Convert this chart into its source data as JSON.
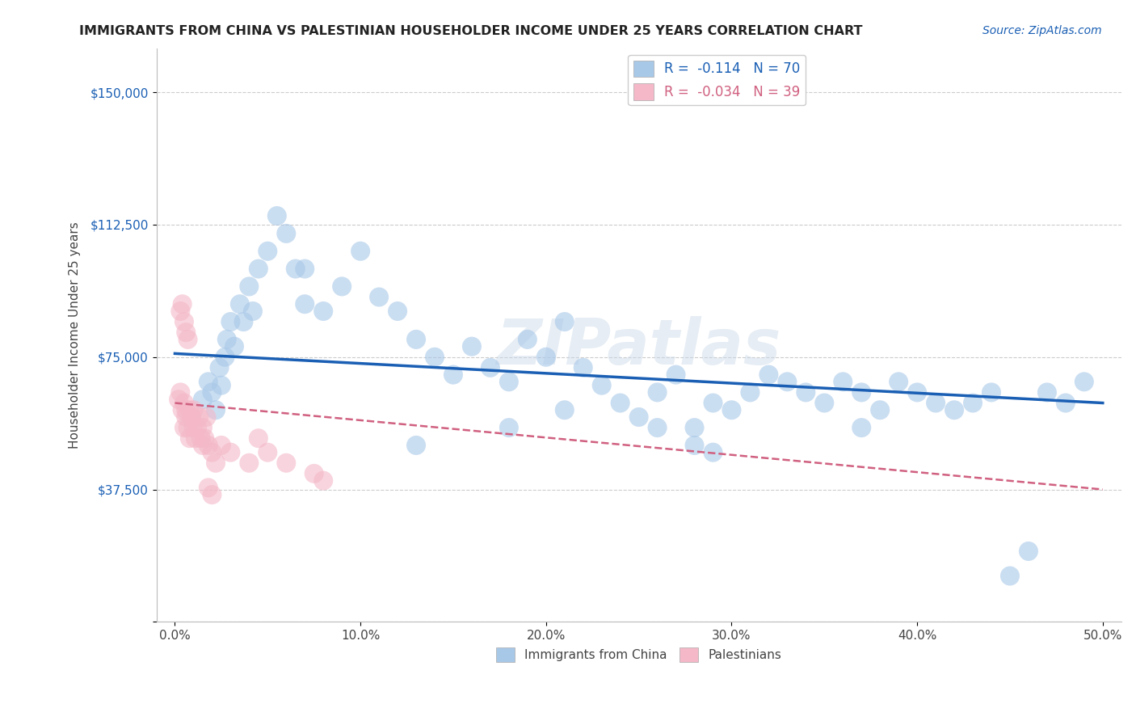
{
  "title": "IMMIGRANTS FROM CHINA VS PALESTINIAN HOUSEHOLDER INCOME UNDER 25 YEARS CORRELATION CHART",
  "source": "Source: ZipAtlas.com",
  "ylabel": "Householder Income Under 25 years",
  "xlim": [
    -1,
    51
  ],
  "ylim": [
    0,
    162500
  ],
  "yticks": [
    0,
    37500,
    75000,
    112500,
    150000
  ],
  "ytick_labels": [
    "",
    "$37,500",
    "$75,000",
    "$112,500",
    "$150,000"
  ],
  "xticks": [
    0,
    10,
    20,
    30,
    40,
    50
  ],
  "xtick_labels": [
    "0.0%",
    "10.0%",
    "20.0%",
    "30.0%",
    "40.0%",
    "50.0%"
  ],
  "legend_r1": "R =  -0.114",
  "legend_n1": "N = 70",
  "legend_r2": "R =  -0.034",
  "legend_n2": "N = 39",
  "china_color": "#a8c8e8",
  "china_edge": "#5590c8",
  "palest_color": "#f4b8c8",
  "palest_edge": "#d06080",
  "trend_china_color": "#1a5fb4",
  "trend_palest_color": "#d06080",
  "watermark": "ZIPatlas",
  "china_x": [
    1.5,
    1.8,
    2.0,
    2.2,
    2.4,
    2.5,
    2.7,
    2.8,
    3.0,
    3.2,
    3.5,
    3.7,
    4.0,
    4.2,
    4.5,
    5.0,
    5.5,
    6.0,
    6.5,
    7.0,
    8.0,
    9.0,
    10.0,
    11.0,
    12.0,
    13.0,
    14.0,
    15.0,
    16.0,
    17.0,
    18.0,
    19.0,
    20.0,
    21.0,
    22.0,
    23.0,
    24.0,
    25.0,
    26.0,
    27.0,
    28.0,
    29.0,
    30.0,
    31.0,
    32.0,
    33.0,
    34.0,
    35.0,
    36.0,
    37.0,
    38.0,
    39.0,
    40.0,
    41.0,
    42.0,
    43.0,
    44.0,
    45.0,
    46.0,
    47.0,
    48.0,
    49.0,
    13.0,
    18.0,
    26.0,
    28.0,
    37.0,
    21.0,
    29.0,
    7.0
  ],
  "china_y": [
    63000,
    68000,
    65000,
    60000,
    72000,
    67000,
    75000,
    80000,
    85000,
    78000,
    90000,
    85000,
    95000,
    88000,
    100000,
    105000,
    115000,
    110000,
    100000,
    90000,
    88000,
    95000,
    105000,
    92000,
    88000,
    80000,
    75000,
    70000,
    78000,
    72000,
    68000,
    80000,
    75000,
    85000,
    72000,
    67000,
    62000,
    58000,
    65000,
    70000,
    55000,
    62000,
    60000,
    65000,
    70000,
    68000,
    65000,
    62000,
    68000,
    65000,
    60000,
    68000,
    65000,
    62000,
    60000,
    62000,
    65000,
    13000,
    20000,
    65000,
    62000,
    68000,
    50000,
    55000,
    55000,
    50000,
    55000,
    60000,
    48000,
    100000
  ],
  "palest_x": [
    0.2,
    0.3,
    0.4,
    0.5,
    0.5,
    0.6,
    0.6,
    0.7,
    0.8,
    0.8,
    0.9,
    1.0,
    1.0,
    1.1,
    1.2,
    1.3,
    1.4,
    1.5,
    1.5,
    1.6,
    1.7,
    1.8,
    2.0,
    2.2,
    2.5,
    3.0,
    4.0,
    4.5,
    5.0,
    6.0,
    7.5,
    8.0,
    0.3,
    0.4,
    0.5,
    0.6,
    0.7,
    1.8,
    2.0
  ],
  "palest_y": [
    63000,
    65000,
    60000,
    55000,
    62000,
    58000,
    60000,
    55000,
    52000,
    60000,
    58000,
    55000,
    60000,
    52000,
    55000,
    58000,
    52000,
    55000,
    50000,
    52000,
    58000,
    50000,
    48000,
    45000,
    50000,
    48000,
    45000,
    52000,
    48000,
    45000,
    42000,
    40000,
    88000,
    90000,
    85000,
    82000,
    80000,
    38000,
    36000
  ]
}
